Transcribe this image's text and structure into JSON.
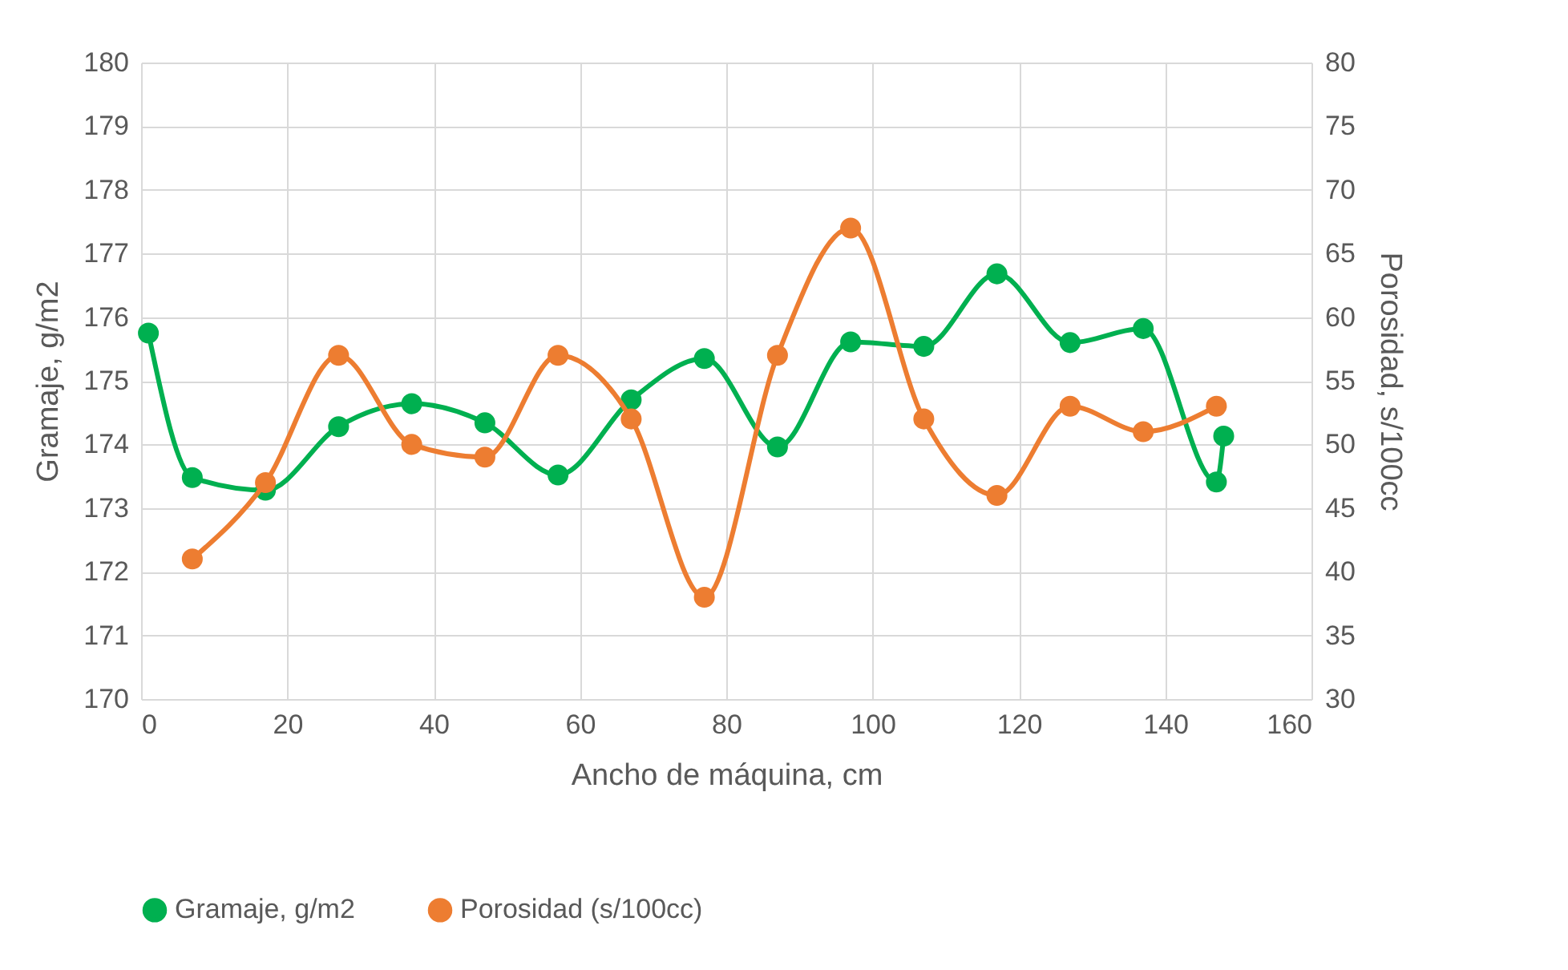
{
  "chart_data": {
    "type": "line",
    "xlabel": "Ancho de máquina, cm",
    "ylabel": "Gramaje, g/m2",
    "y2label": "Porosidad, s/100cc",
    "xlim": [
      0,
      160
    ],
    "xticks": [
      0,
      20,
      40,
      60,
      80,
      100,
      120,
      140,
      160
    ],
    "ylim": [
      170,
      180
    ],
    "yticks": [
      170,
      171,
      172,
      173,
      174,
      175,
      176,
      177,
      178,
      179,
      180
    ],
    "y2lim": [
      30,
      80
    ],
    "y2ticks": [
      30,
      35,
      40,
      45,
      50,
      55,
      60,
      65,
      70,
      75,
      80
    ],
    "grid": true,
    "legend": "bottom",
    "marker": "circle",
    "series": [
      {
        "name": "Gramaje, g/m2",
        "color": "#00b050",
        "x": [
          1,
          7,
          17,
          27,
          37,
          47,
          57,
          67,
          77,
          87,
          97,
          107,
          117,
          127,
          137,
          147,
          148
        ],
        "values": [
          175.75,
          173.48,
          173.28,
          174.28,
          174.64,
          174.34,
          173.52,
          174.7,
          175.35,
          173.96,
          175.61,
          175.54,
          176.68,
          175.6,
          175.82,
          173.41,
          174.13
        ]
      },
      {
        "name": "Porosidad (s/100cc)",
        "color": "#ed7d31",
        "axis": "y2",
        "x": [
          7,
          17,
          27,
          37,
          47,
          57,
          67,
          77,
          87,
          97,
          107,
          117,
          127,
          137,
          147
        ],
        "values": [
          41,
          47,
          57,
          50,
          49,
          57,
          52,
          38,
          57,
          67,
          52,
          46,
          53,
          51,
          53
        ]
      }
    ]
  }
}
